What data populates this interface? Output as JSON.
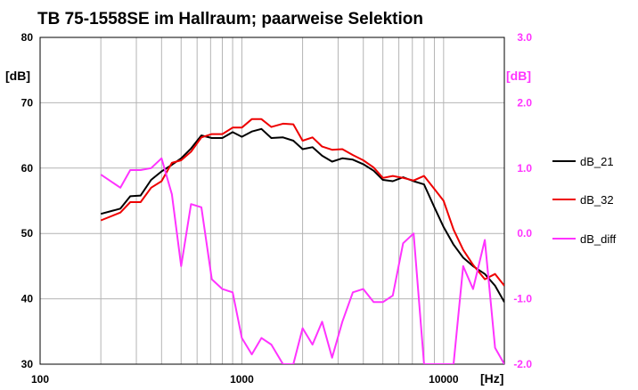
{
  "chart_data": {
    "type": "line",
    "title": "TB 75-1558SE im Hallraum;  paarweise Selektion",
    "x_scale": "log",
    "xlim": [
      100,
      20000
    ],
    "x_ticks": [
      100,
      1000,
      10000
    ],
    "x_tick_labels": [
      "100",
      "1000",
      "10000"
    ],
    "x_unit": "[Hz]",
    "ylim": [
      30,
      80
    ],
    "y_ticks": [
      80,
      70,
      60,
      50,
      40,
      30
    ],
    "y_tick_labels": [
      "80",
      "70",
      "60",
      "50",
      "40",
      "30"
    ],
    "y_unit": "[dB]",
    "y2lim": [
      -2.0,
      3.0
    ],
    "y2_ticks": [
      3.0,
      2.0,
      1.0,
      0.0,
      -1.0,
      -2.0
    ],
    "y2_tick_labels": [
      "3.0",
      "2.0",
      "1.0",
      "0.0",
      "-1.0",
      "-2.0"
    ],
    "y2_unit": "[dB]",
    "grid": true,
    "legend_position": "right",
    "colors": {
      "left_axis": "#000000",
      "right_axis": "#ff33ff"
    },
    "series": [
      {
        "name": "dB_21",
        "color": "#000000",
        "axis": "left",
        "x": [
          200,
          250,
          280,
          315,
          355,
          400,
          450,
          500,
          560,
          630,
          710,
          800,
          900,
          1000,
          1120,
          1250,
          1400,
          1600,
          1800,
          2000,
          2240,
          2500,
          2800,
          3150,
          3550,
          4000,
          4500,
          5000,
          5600,
          6300,
          7100,
          8000,
          9000,
          10000,
          11200,
          12500,
          14000,
          16000,
          18000,
          20000
        ],
        "y": [
          53.0,
          53.8,
          55.7,
          55.8,
          58.2,
          59.5,
          60.5,
          61.5,
          63.0,
          65.0,
          64.6,
          64.6,
          65.5,
          64.8,
          65.6,
          66.0,
          64.6,
          64.7,
          64.2,
          62.9,
          63.2,
          61.9,
          61.0,
          61.5,
          61.3,
          60.6,
          59.6,
          58.2,
          58.0,
          58.6,
          58.0,
          57.5,
          54.0,
          51.0,
          48.3,
          46.3,
          45.0,
          43.8,
          42.0,
          39.5
        ]
      },
      {
        "name": "dB_32",
        "color": "#ee0000",
        "axis": "left",
        "x": [
          200,
          250,
          280,
          315,
          355,
          400,
          450,
          500,
          560,
          630,
          710,
          800,
          900,
          1000,
          1120,
          1250,
          1400,
          1600,
          1800,
          2000,
          2240,
          2500,
          2800,
          3150,
          3550,
          4000,
          4500,
          5000,
          5600,
          6300,
          7100,
          8000,
          9000,
          10000,
          11200,
          12500,
          14000,
          16000,
          18000,
          20000
        ],
        "y": [
          52.0,
          53.2,
          54.8,
          54.8,
          57.0,
          58.0,
          60.8,
          61.2,
          62.5,
          64.7,
          65.2,
          65.2,
          66.2,
          66.2,
          67.5,
          67.5,
          66.3,
          66.8,
          66.7,
          64.2,
          64.7,
          63.3,
          62.8,
          62.9,
          62.0,
          61.2,
          60.1,
          58.5,
          58.8,
          58.5,
          58.1,
          58.8,
          56.8,
          55.0,
          50.6,
          47.5,
          45.2,
          43.0,
          43.8,
          42.0
        ]
      },
      {
        "name": "dB_diff",
        "color": "#ff33ff",
        "axis": "right",
        "x": [
          200,
          250,
          280,
          315,
          355,
          400,
          450,
          500,
          560,
          630,
          710,
          800,
          900,
          1000,
          1120,
          1250,
          1400,
          1600,
          1800,
          2000,
          2240,
          2500,
          2800,
          3150,
          3550,
          4000,
          4500,
          5000,
          5600,
          6300,
          7100,
          8000,
          9000,
          10000,
          11200,
          12500,
          14000,
          16000,
          18000,
          20000
        ],
        "y": [
          0.9,
          0.7,
          0.97,
          0.97,
          1.0,
          1.15,
          0.6,
          -0.5,
          0.45,
          0.4,
          -0.7,
          -0.85,
          -0.9,
          -1.6,
          -1.85,
          -1.6,
          -1.7,
          -2.0,
          -2.0,
          -1.45,
          -1.7,
          -1.35,
          -1.9,
          -1.35,
          -0.9,
          -0.85,
          -1.05,
          -1.05,
          -0.95,
          -0.15,
          0.0,
          -2.0,
          -2.0,
          -2.0,
          -2.0,
          -0.5,
          -0.85,
          -0.1,
          -1.75,
          -2.0
        ]
      }
    ]
  }
}
